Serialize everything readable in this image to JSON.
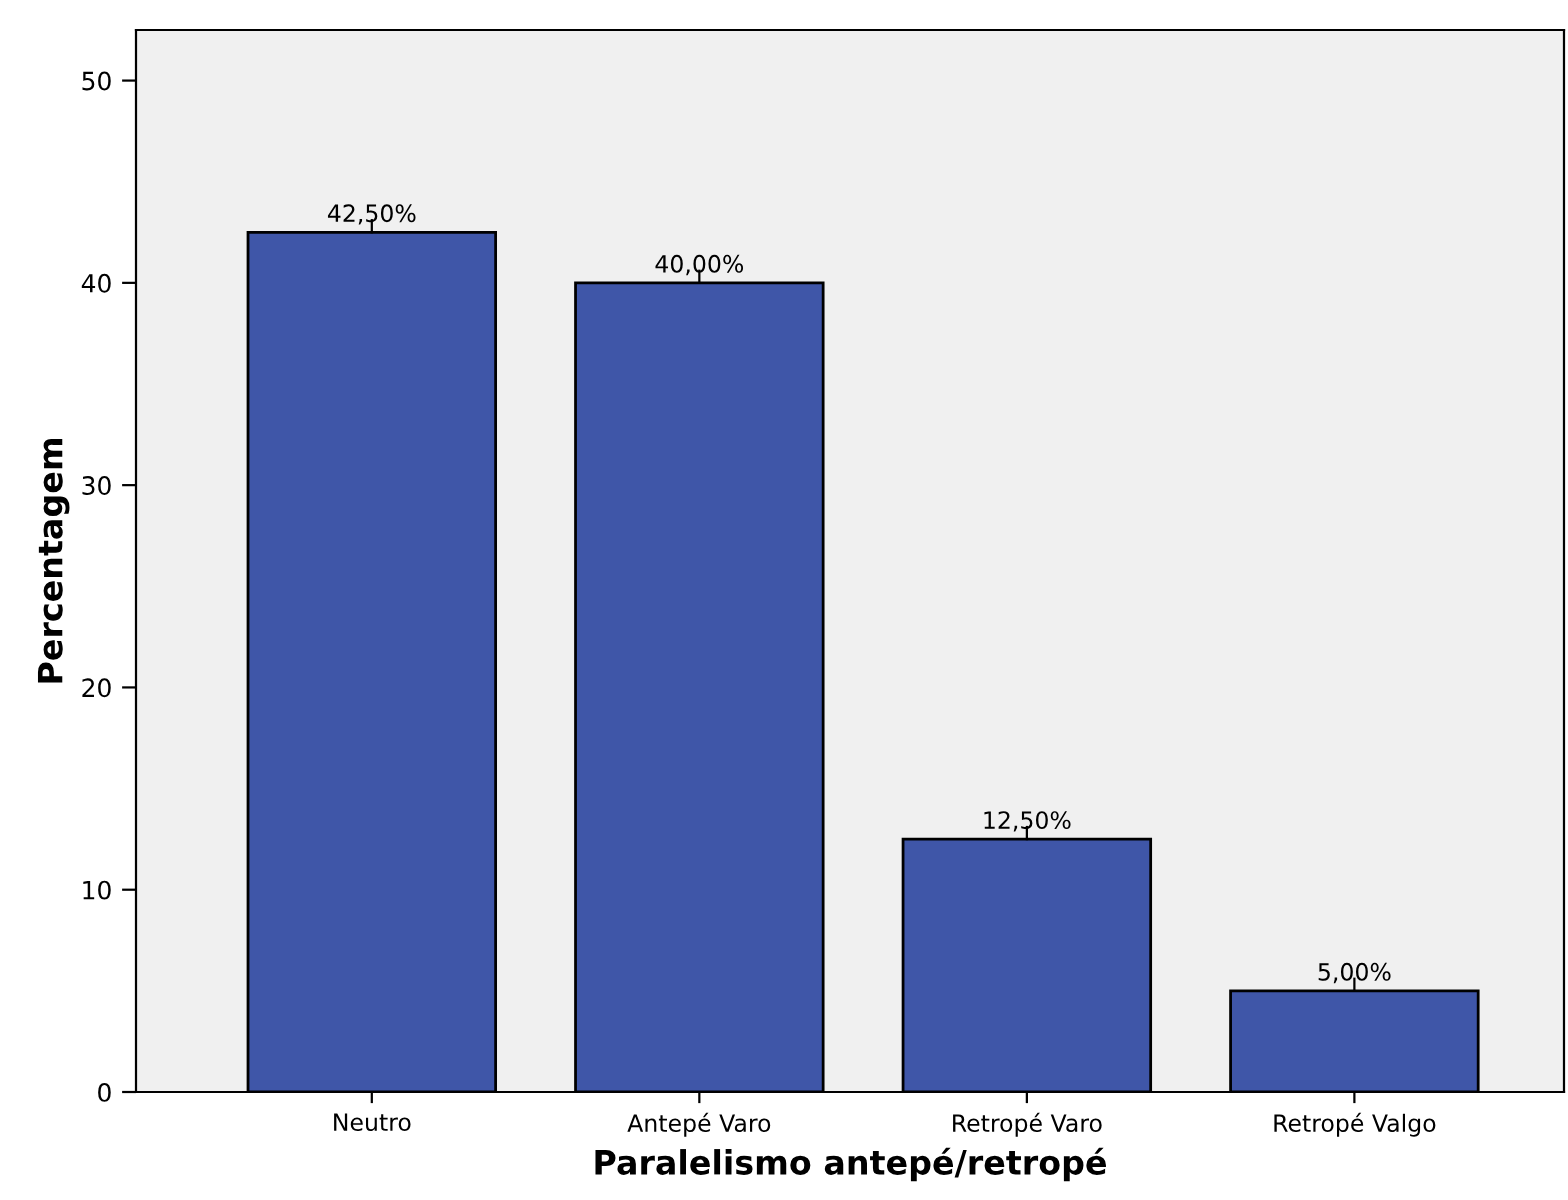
{
  "chart_data": {
    "type": "bar",
    "xlabel": "Paralelismo antepé/retropé",
    "ylabel": "Percentagem",
    "categories": [
      "Neutro",
      "Antepé Varo",
      "Retropé Varo",
      "Retropé Valgo"
    ],
    "values": [
      42.5,
      40.0,
      12.5,
      5.0
    ],
    "value_labels": [
      "42,50%",
      "40,00%",
      "12,50%",
      "5,00%"
    ],
    "color": "#3f56a8",
    "ylim": [
      0,
      52.5
    ],
    "yticks": [
      0,
      10,
      20,
      30,
      40,
      50
    ],
    "grid": false,
    "legend": false
  }
}
